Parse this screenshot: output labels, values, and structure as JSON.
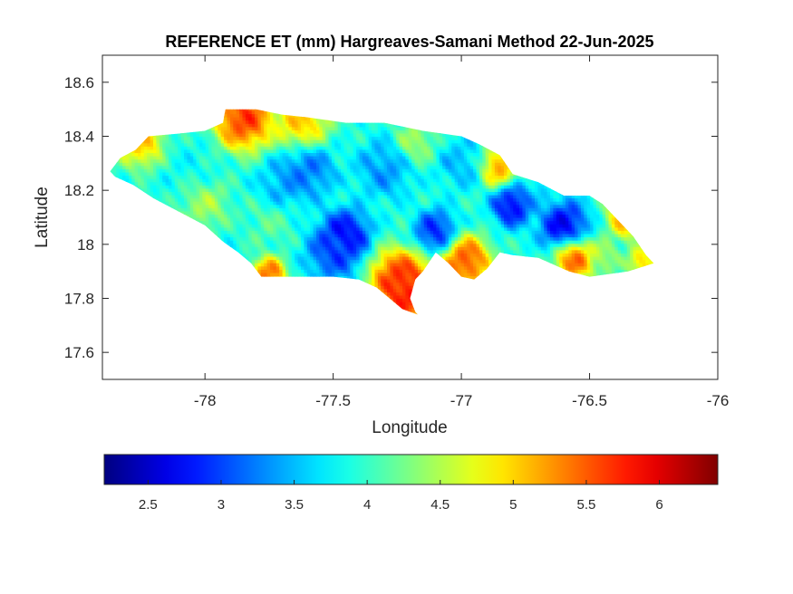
{
  "chart_data": {
    "type": "heatmap",
    "title": "REFERENCE ET (mm) Hargreaves-Samani Method  22-Jun-2025",
    "xlabel": "Longitude",
    "ylabel": "Latitude",
    "xlim": [
      -78.4,
      -76
    ],
    "ylim": [
      17.5,
      18.7
    ],
    "x_ticks": [
      -78,
      -77.5,
      -77,
      -76.5,
      -76
    ],
    "x_tick_labels": [
      "-78",
      "-77.5",
      "-77",
      "-76.5",
      "-76"
    ],
    "y_ticks": [
      17.6,
      17.8,
      18,
      18.2,
      18.4,
      18.6
    ],
    "y_tick_labels": [
      "17.6",
      "17.8",
      "18",
      "18.2",
      "18.4",
      "18.6"
    ],
    "grid": false,
    "colormap": "jet",
    "colorbar": {
      "location": "bottom",
      "range": [
        2.2,
        6.4
      ],
      "ticks": [
        2.5,
        3,
        3.5,
        4,
        4.5,
        5,
        5.5,
        6
      ],
      "tick_labels": [
        "2.5",
        "3",
        "3.5",
        "4",
        "4.5",
        "5",
        "5.5",
        "6"
      ]
    },
    "region_outline": [
      [
        -78.37,
        18.27
      ],
      [
        -78.33,
        18.32
      ],
      [
        -78.27,
        18.35
      ],
      [
        -78.22,
        18.4
      ],
      [
        -78.1,
        18.41
      ],
      [
        -78.0,
        18.42
      ],
      [
        -77.93,
        18.45
      ],
      [
        -77.92,
        18.5
      ],
      [
        -77.8,
        18.5
      ],
      [
        -77.7,
        18.48
      ],
      [
        -77.6,
        18.47
      ],
      [
        -77.45,
        18.45
      ],
      [
        -77.3,
        18.45
      ],
      [
        -77.15,
        18.42
      ],
      [
        -77.0,
        18.4
      ],
      [
        -76.93,
        18.37
      ],
      [
        -76.85,
        18.33
      ],
      [
        -76.8,
        18.26
      ],
      [
        -76.7,
        18.23
      ],
      [
        -76.6,
        18.18
      ],
      [
        -76.5,
        18.18
      ],
      [
        -76.45,
        18.15
      ],
      [
        -76.4,
        18.1
      ],
      [
        -76.33,
        18.03
      ],
      [
        -76.28,
        17.96
      ],
      [
        -76.25,
        17.93
      ],
      [
        -76.35,
        17.9
      ],
      [
        -76.5,
        17.88
      ],
      [
        -76.58,
        17.9
      ],
      [
        -76.7,
        17.95
      ],
      [
        -76.8,
        17.96
      ],
      [
        -76.85,
        17.97
      ],
      [
        -76.9,
        17.91
      ],
      [
        -76.95,
        17.87
      ],
      [
        -77.0,
        17.88
      ],
      [
        -77.05,
        17.93
      ],
      [
        -77.1,
        17.97
      ],
      [
        -77.15,
        17.9
      ],
      [
        -77.18,
        17.87
      ],
      [
        -77.2,
        17.8
      ],
      [
        -77.18,
        17.75
      ],
      [
        -77.17,
        17.74
      ],
      [
        -77.23,
        17.76
      ],
      [
        -77.28,
        17.8
      ],
      [
        -77.33,
        17.84
      ],
      [
        -77.4,
        17.87
      ],
      [
        -77.5,
        17.88
      ],
      [
        -77.6,
        17.88
      ],
      [
        -77.7,
        17.88
      ],
      [
        -77.78,
        17.88
      ],
      [
        -77.82,
        17.93
      ],
      [
        -77.87,
        17.97
      ],
      [
        -77.93,
        18.01
      ],
      [
        -78.0,
        18.07
      ],
      [
        -78.1,
        18.12
      ],
      [
        -78.2,
        18.17
      ],
      [
        -78.28,
        18.22
      ],
      [
        -78.35,
        18.25
      ]
    ],
    "field_features": [
      {
        "lon": -77.85,
        "lat": 18.47,
        "value": 6.2,
        "radius": 0.09
      },
      {
        "lon": -77.62,
        "lat": 18.45,
        "value": 5.4,
        "radius": 0.08
      },
      {
        "lon": -78.25,
        "lat": 18.38,
        "value": 5.4,
        "radius": 0.07
      },
      {
        "lon": -77.2,
        "lat": 17.82,
        "value": 6.3,
        "radius": 0.09
      },
      {
        "lon": -77.25,
        "lat": 17.88,
        "value": 6.0,
        "radius": 0.08
      },
      {
        "lon": -76.98,
        "lat": 17.94,
        "value": 6.1,
        "radius": 0.07
      },
      {
        "lon": -76.56,
        "lat": 17.95,
        "value": 6.0,
        "radius": 0.06
      },
      {
        "lon": -77.75,
        "lat": 17.89,
        "value": 5.9,
        "radius": 0.05
      },
      {
        "lon": -76.85,
        "lat": 18.29,
        "value": 5.6,
        "radius": 0.06
      },
      {
        "lon": -76.35,
        "lat": 18.1,
        "value": 5.6,
        "radius": 0.06
      },
      {
        "lon": -76.28,
        "lat": 17.94,
        "value": 5.4,
        "radius": 0.05
      },
      {
        "lon": -77.45,
        "lat": 18.04,
        "value": 2.4,
        "radius": 0.07
      },
      {
        "lon": -77.5,
        "lat": 17.97,
        "value": 2.8,
        "radius": 0.08
      },
      {
        "lon": -77.1,
        "lat": 18.05,
        "value": 2.6,
        "radius": 0.06
      },
      {
        "lon": -76.8,
        "lat": 18.15,
        "value": 2.3,
        "radius": 0.06
      },
      {
        "lon": -76.6,
        "lat": 18.07,
        "value": 2.3,
        "radius": 0.07
      },
      {
        "lon": -77.6,
        "lat": 18.28,
        "value": 3.0,
        "radius": 0.08
      },
      {
        "lon": -77.3,
        "lat": 18.28,
        "value": 3.2,
        "radius": 0.08
      },
      {
        "lon": -77.0,
        "lat": 18.3,
        "value": 3.4,
        "radius": 0.07
      },
      {
        "lon": -78.05,
        "lat": 18.3,
        "value": 3.8,
        "radius": 0.08
      },
      {
        "lon": -78.0,
        "lat": 18.15,
        "value": 4.6,
        "radius": 0.07
      },
      {
        "lon": -77.75,
        "lat": 18.08,
        "value": 4.2,
        "radius": 0.07
      },
      {
        "lon": -77.7,
        "lat": 18.22,
        "value": 3.3,
        "radius": 0.07
      },
      {
        "lon": -76.7,
        "lat": 18.2,
        "value": 3.6,
        "radius": 0.06
      },
      {
        "lon": -77.18,
        "lat": 18.38,
        "value": 4.6,
        "radius": 0.06
      },
      {
        "lon": -76.45,
        "lat": 17.95,
        "value": 4.6,
        "radius": 0.05
      }
    ]
  }
}
